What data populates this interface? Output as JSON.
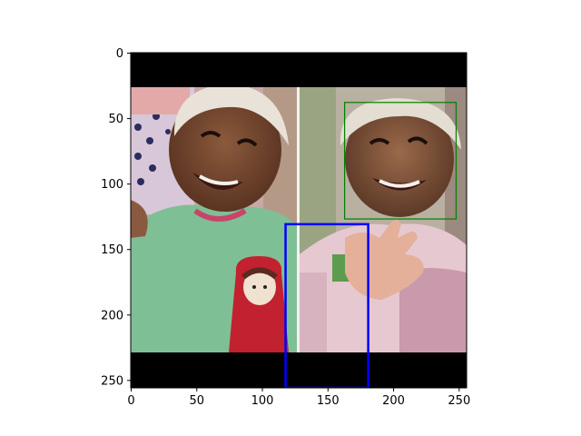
{
  "figure": {
    "background": "#ffffff",
    "image_extent": {
      "x": [
        0,
        256
      ],
      "y": [
        0,
        256
      ]
    },
    "x_ticks": [
      {
        "value": 0,
        "label": "0"
      },
      {
        "value": 50,
        "label": "50"
      },
      {
        "value": 100,
        "label": "100"
      },
      {
        "value": 150,
        "label": "150"
      },
      {
        "value": 200,
        "label": "200"
      },
      {
        "value": 250,
        "label": "250"
      }
    ],
    "y_ticks": [
      {
        "value": 0,
        "label": "0"
      },
      {
        "value": 50,
        "label": "50"
      },
      {
        "value": 100,
        "label": "100"
      },
      {
        "value": 150,
        "label": "150"
      },
      {
        "value": 200,
        "label": "200"
      },
      {
        "value": 250,
        "label": "250"
      }
    ],
    "boxes": [
      {
        "name": "green-face-box",
        "color": "#008000",
        "x0": 163,
        "y0": 38,
        "x1": 248,
        "y1": 127
      },
      {
        "name": "blue-box",
        "color": "#0000ff",
        "x0": 118,
        "y0": 131,
        "x1": 181,
        "y1": 256
      }
    ]
  }
}
